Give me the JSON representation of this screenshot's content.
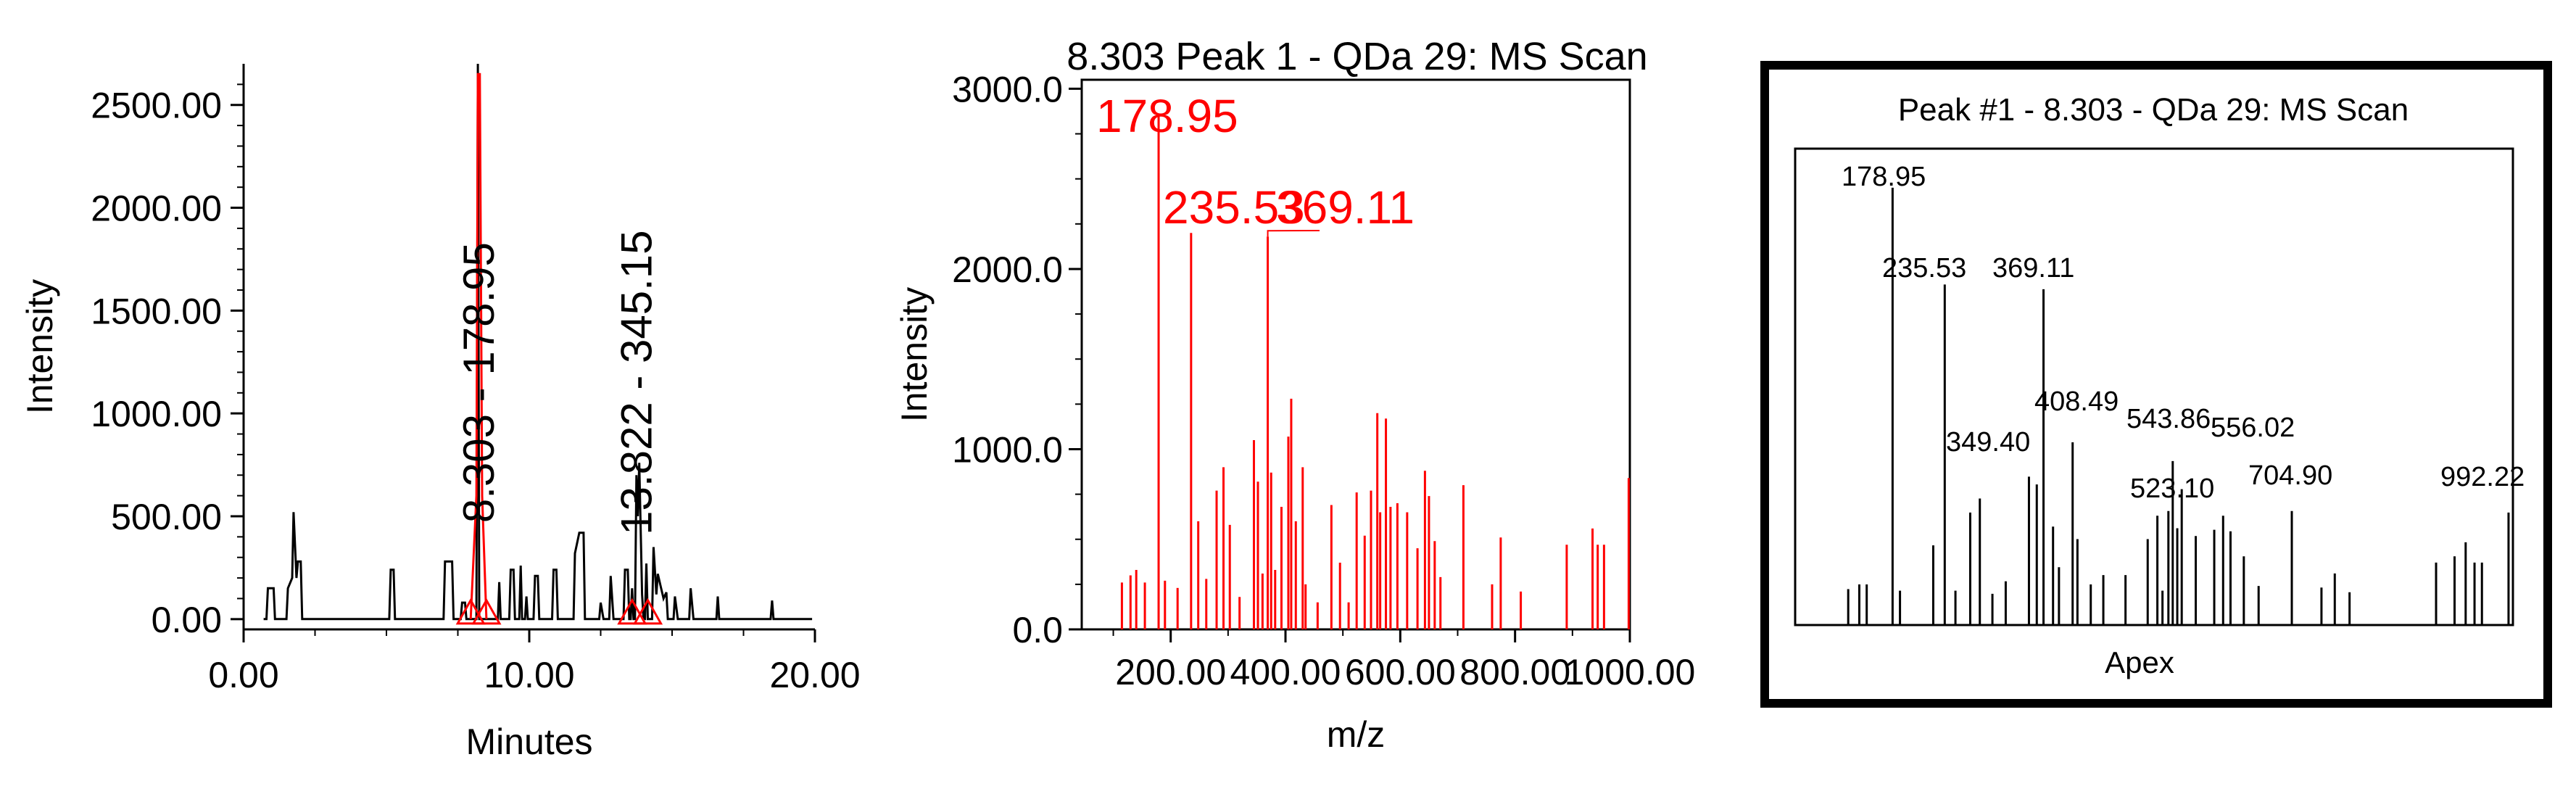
{
  "chart_data": [
    {
      "type": "line",
      "title": "",
      "xlabel": "Minutes",
      "ylabel": "Intensity",
      "xlim": [
        0,
        20
      ],
      "ylim": [
        -50,
        2700
      ],
      "x_ticks": [
        "0.00",
        "10.00",
        "20.00"
      ],
      "y_ticks": [
        "0.00",
        "500.00",
        "1000.00",
        "1500.00",
        "2000.00",
        "2500.00"
      ],
      "series": [
        {
          "color": "#000000",
          "points": [
            [
              0.7,
              0
            ],
            [
              0.8,
              0
            ],
            [
              0.85,
              150
            ],
            [
              1.05,
              150
            ],
            [
              1.1,
              0
            ],
            [
              1.5,
              0
            ],
            [
              1.55,
              150
            ],
            [
              1.7,
              200
            ],
            [
              1.75,
              520
            ],
            [
              1.85,
              200
            ],
            [
              1.9,
              280
            ],
            [
              2.0,
              280
            ],
            [
              2.05,
              0
            ],
            [
              5.1,
              0
            ],
            [
              5.15,
              240
            ],
            [
              5.25,
              240
            ],
            [
              5.3,
              0
            ],
            [
              7.0,
              0
            ],
            [
              7.05,
              280
            ],
            [
              7.3,
              280
            ],
            [
              7.35,
              0
            ],
            [
              7.6,
              0
            ],
            [
              7.65,
              80
            ],
            [
              7.75,
              80
            ],
            [
              7.8,
              0
            ],
            [
              8.15,
              0
            ],
            [
              8.2,
              2700
            ],
            [
              8.25,
              0
            ],
            [
              8.9,
              0
            ],
            [
              8.95,
              180
            ],
            [
              9.0,
              0
            ],
            [
              9.3,
              0
            ],
            [
              9.35,
              240
            ],
            [
              9.45,
              240
            ],
            [
              9.5,
              0
            ],
            [
              9.65,
              0
            ],
            [
              9.7,
              260
            ],
            [
              9.75,
              0
            ],
            [
              9.85,
              0
            ],
            [
              9.9,
              110
            ],
            [
              9.95,
              0
            ],
            [
              10.15,
              0
            ],
            [
              10.2,
              210
            ],
            [
              10.3,
              210
            ],
            [
              10.35,
              0
            ],
            [
              10.8,
              0
            ],
            [
              10.85,
              240
            ],
            [
              10.95,
              240
            ],
            [
              11.0,
              0
            ],
            [
              11.55,
              0
            ],
            [
              11.6,
              320
            ],
            [
              11.75,
              420
            ],
            [
              11.9,
              420
            ],
            [
              11.95,
              0
            ],
            [
              12.45,
              0
            ],
            [
              12.5,
              80
            ],
            [
              12.6,
              0
            ],
            [
              12.8,
              0
            ],
            [
              12.85,
              210
            ],
            [
              12.95,
              0
            ],
            [
              13.3,
              0
            ],
            [
              13.35,
              240
            ],
            [
              13.45,
              240
            ],
            [
              13.5,
              0
            ],
            [
              13.55,
              0
            ],
            [
              13.6,
              150
            ],
            [
              13.65,
              0
            ],
            [
              13.7,
              0
            ],
            [
              13.75,
              700
            ],
            [
              13.8,
              500
            ],
            [
              13.85,
              760
            ],
            [
              13.95,
              120
            ],
            [
              14.0,
              0
            ],
            [
              14.05,
              0
            ],
            [
              14.1,
              270
            ],
            [
              14.15,
              0
            ],
            [
              14.3,
              0
            ],
            [
              14.35,
              350
            ],
            [
              14.45,
              120
            ],
            [
              14.5,
              220
            ],
            [
              14.6,
              160
            ],
            [
              14.7,
              100
            ],
            [
              14.8,
              130
            ],
            [
              14.85,
              0
            ],
            [
              15.05,
              0
            ],
            [
              15.1,
              110
            ],
            [
              15.2,
              0
            ],
            [
              15.6,
              0
            ],
            [
              15.65,
              150
            ],
            [
              15.75,
              0
            ],
            [
              16.55,
              0
            ],
            [
              16.6,
              110
            ],
            [
              16.65,
              0
            ],
            [
              18.45,
              0
            ],
            [
              18.5,
              90
            ],
            [
              18.55,
              0
            ],
            [
              19.9,
              0
            ]
          ]
        },
        {
          "color": "#ff0000",
          "points": [
            [
              7.95,
              0
            ],
            [
              8.15,
              600
            ],
            [
              8.2,
              2650
            ],
            [
              8.27,
              2650
            ],
            [
              8.35,
              600
            ],
            [
              8.5,
              0
            ]
          ]
        }
      ],
      "annotations": [
        {
          "x": 8.303,
          "text": "8.303 - 178.95",
          "color": "#000000"
        },
        {
          "x": 13.822,
          "text": "13.822 - 345.15",
          "color": "#000000"
        }
      ],
      "markers": [
        {
          "x": 7.95,
          "color": "#ff0000"
        },
        {
          "x": 8.5,
          "color": "#ff0000"
        },
        {
          "x": 13.6,
          "color": "#ff0000"
        },
        {
          "x": 14.15,
          "color": "#ff0000"
        }
      ]
    },
    {
      "type": "bar",
      "title": "8.303 Peak 1 - QDa 29: MS Scan",
      "xlabel": "m/z",
      "ylabel": "Intensity",
      "xlim": [
        45,
        1000
      ],
      "ylim": [
        0,
        3050
      ],
      "x_ticks": [
        "200.00",
        "400.00",
        "600.00",
        "800.00",
        "1000.00"
      ],
      "y_ticks": [
        "0.0",
        "1000.0",
        "2000.0",
        "3000.0"
      ],
      "color": "#ff0000",
      "labels": [
        {
          "x": 178.95,
          "text": "178.95"
        },
        {
          "x": 235.53,
          "text": "235.53"
        },
        {
          "x": 369.11,
          "text": "369.11"
        }
      ],
      "peaks": [
        [
          115,
          260
        ],
        [
          130,
          300
        ],
        [
          140,
          330
        ],
        [
          155,
          260
        ],
        [
          178.95,
          2850
        ],
        [
          190,
          270
        ],
        [
          212,
          230
        ],
        [
          235.53,
          2200
        ],
        [
          248,
          600
        ],
        [
          262,
          280
        ],
        [
          280,
          770
        ],
        [
          292,
          900
        ],
        [
          303,
          580
        ],
        [
          320,
          180
        ],
        [
          345,
          1050
        ],
        [
          352,
          820
        ],
        [
          360,
          310
        ],
        [
          369.11,
          2180
        ],
        [
          375,
          870
        ],
        [
          382,
          330
        ],
        [
          393,
          680
        ],
        [
          405,
          1070
        ],
        [
          410,
          1280
        ],
        [
          418,
          600
        ],
        [
          430,
          900
        ],
        [
          435,
          250
        ],
        [
          456,
          150
        ],
        [
          480,
          690
        ],
        [
          495,
          370
        ],
        [
          510,
          150
        ],
        [
          524,
          760
        ],
        [
          538,
          520
        ],
        [
          549,
          770
        ],
        [
          560,
          1200
        ],
        [
          565,
          650
        ],
        [
          575,
          1170
        ],
        [
          583,
          680
        ],
        [
          595,
          700
        ],
        [
          612,
          650
        ],
        [
          630,
          450
        ],
        [
          643,
          880
        ],
        [
          650,
          740
        ],
        [
          660,
          490
        ],
        [
          670,
          290
        ],
        [
          710,
          800
        ],
        [
          760,
          250
        ],
        [
          775,
          510
        ],
        [
          810,
          210
        ],
        [
          890,
          470
        ],
        [
          935,
          560
        ],
        [
          944,
          470
        ],
        [
          955,
          470
        ],
        [
          998,
          840
        ]
      ]
    },
    {
      "type": "bar",
      "title": "Peak #1 - 8.303 - QDa 29: MS Scan",
      "xlabel": "Apex",
      "ylabel": "",
      "xlim": [
        45,
        1000
      ],
      "ylim": [
        0,
        3050
      ],
      "color": "#000000",
      "labels": [
        {
          "x": 178.95,
          "text": "178.95"
        },
        {
          "x": 235.53,
          "text": "235.53"
        },
        {
          "x": 369.11,
          "text": "369.11"
        },
        {
          "x": 349.4,
          "text": "349.40"
        },
        {
          "x": 408.49,
          "text": "408.49"
        },
        {
          "x": 543.86,
          "text": "543.86"
        },
        {
          "x": 556.02,
          "text": "556.02"
        },
        {
          "x": 523.1,
          "text": "523.10"
        },
        {
          "x": 704.9,
          "text": "704.90"
        },
        {
          "x": 992.22,
          "text": "992.22"
        }
      ],
      "peaks": [
        [
          105,
          230
        ],
        [
          120,
          260
        ],
        [
          130,
          260
        ],
        [
          165,
          2800
        ],
        [
          175,
          220
        ],
        [
          220,
          510
        ],
        [
          235.53,
          2180
        ],
        [
          250,
          220
        ],
        [
          270,
          720
        ],
        [
          283,
          810
        ],
        [
          300,
          200
        ],
        [
          318,
          280
        ],
        [
          349.4,
          950
        ],
        [
          360,
          900
        ],
        [
          369.11,
          2150
        ],
        [
          382,
          630
        ],
        [
          390,
          370
        ],
        [
          408.49,
          1170
        ],
        [
          415,
          550
        ],
        [
          433,
          260
        ],
        [
          450,
          320
        ],
        [
          480,
          320
        ],
        [
          510,
          550
        ],
        [
          523.1,
          700
        ],
        [
          530,
          220
        ],
        [
          538,
          730
        ],
        [
          543.86,
          1050
        ],
        [
          550,
          620
        ],
        [
          556.02,
          870
        ],
        [
          575,
          570
        ],
        [
          600,
          610
        ],
        [
          612,
          700
        ],
        [
          622,
          600
        ],
        [
          640,
          440
        ],
        [
          660,
          250
        ],
        [
          704.9,
          730
        ],
        [
          745,
          240
        ],
        [
          763,
          330
        ],
        [
          783,
          210
        ],
        [
          900,
          400
        ],
        [
          925,
          440
        ],
        [
          940,
          530
        ],
        [
          952,
          400
        ],
        [
          962,
          400
        ],
        [
          998,
          720
        ]
      ]
    }
  ]
}
